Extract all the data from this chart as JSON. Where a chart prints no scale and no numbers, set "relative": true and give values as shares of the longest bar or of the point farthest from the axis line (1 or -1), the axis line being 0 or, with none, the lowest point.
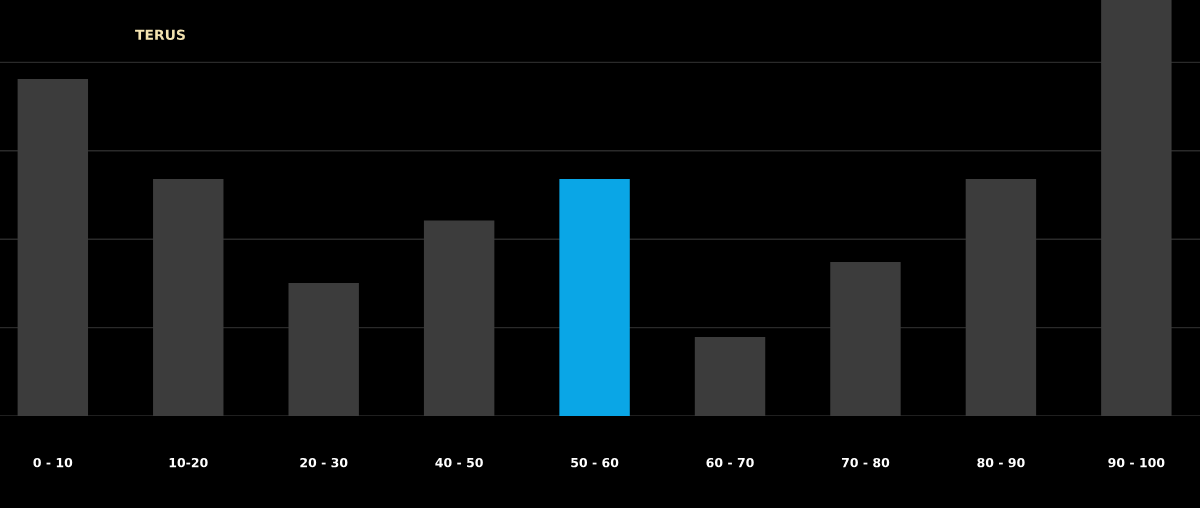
{
  "chart_data": {
    "type": "bar",
    "relative": true,
    "categories": [
      "0 - 10",
      "10-20",
      "20 - 30",
      "40 - 50",
      "50 - 60",
      "60 - 70",
      "70 - 80",
      "80 - 90",
      "90 - 100"
    ],
    "values": [
      0.81,
      0.57,
      0.32,
      0.47,
      0.57,
      0.19,
      0.37,
      0.57,
      1
    ],
    "colors": [
      "#3c3c3c",
      "#3c3c3c",
      "#3c3c3c",
      "#3c3c3c",
      "#0aa6e6",
      "#3c3c3c",
      "#3c3c3c",
      "#3c3c3c",
      "#3c3c3c"
    ],
    "annotations": [
      "TERUS"
    ],
    "grid": "y"
  }
}
